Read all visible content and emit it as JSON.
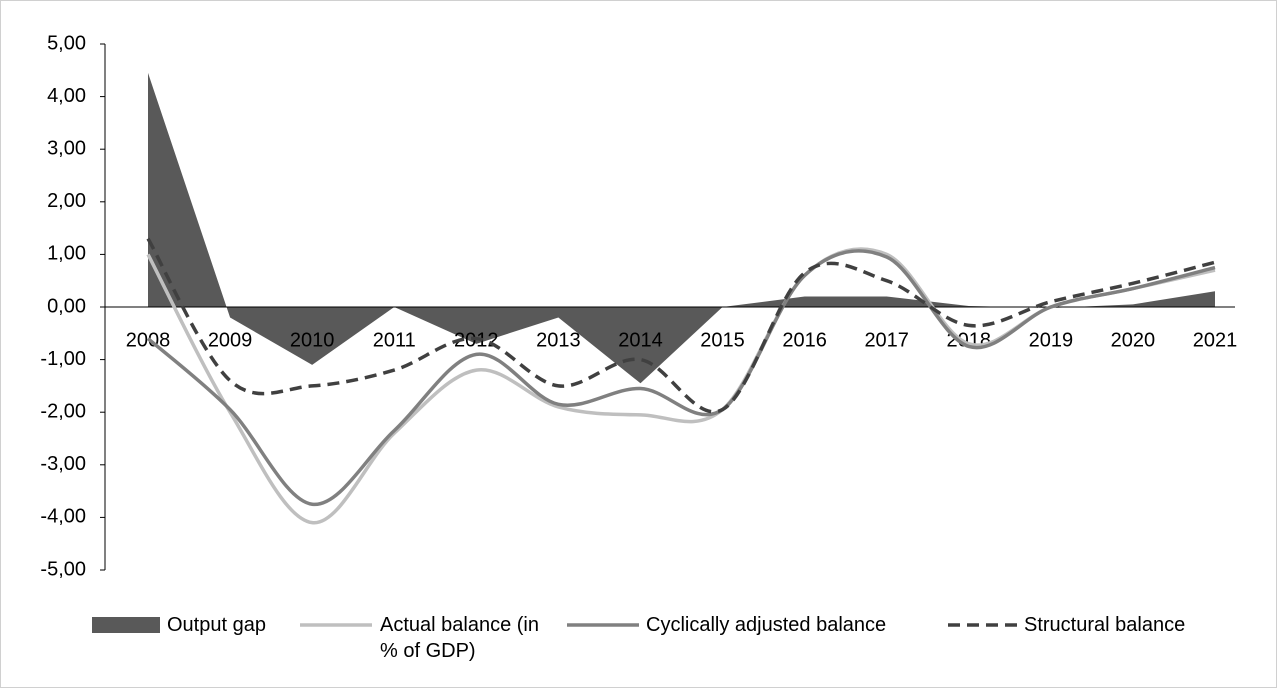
{
  "chart_data": {
    "type": "line",
    "categories": [
      "2008",
      "2009",
      "2010",
      "2011",
      "2012",
      "2013",
      "2014",
      "2015",
      "2016",
      "2017",
      "2018",
      "2019",
      "2020",
      "2021"
    ],
    "series": [
      {
        "name": "Output gap",
        "type": "area",
        "color": "#595959",
        "values": [
          4.45,
          -0.2,
          -1.1,
          0,
          -0.7,
          -0.2,
          -1.45,
          0,
          0.2,
          0.2,
          0.02,
          -0.02,
          0.05,
          0.3
        ]
      },
      {
        "name": "Actual balance (in % of GDP)",
        "type": "line",
        "color": "#bfbfbf",
        "values": [
          1.0,
          -2.0,
          -4.1,
          -2.4,
          -1.2,
          -1.9,
          -2.05,
          -1.95,
          0.6,
          1.0,
          -0.7,
          0.0,
          0.35,
          0.7
        ]
      },
      {
        "name": "Cyclically adjusted balance",
        "type": "line",
        "color": "#808080",
        "values": [
          -0.6,
          -1.95,
          -3.75,
          -2.35,
          -0.9,
          -1.85,
          -1.55,
          -1.95,
          0.6,
          0.95,
          -0.75,
          0.0,
          0.35,
          0.75
        ]
      },
      {
        "name": "Structural balance",
        "type": "line",
        "color": "#404040",
        "dashed": true,
        "values": [
          1.3,
          -1.4,
          -1.5,
          -1.2,
          -0.6,
          -1.5,
          -1.0,
          -1.95,
          0.65,
          0.5,
          -0.35,
          0.1,
          0.45,
          0.85
        ]
      }
    ],
    "ylim": [
      -5,
      5
    ],
    "yticks": [
      {
        "value": 5,
        "label": "5,00"
      },
      {
        "value": 4,
        "label": "4,00"
      },
      {
        "value": 3,
        "label": "3,00"
      },
      {
        "value": 2,
        "label": "2,00"
      },
      {
        "value": 1,
        "label": "1,00"
      },
      {
        "value": 0,
        "label": "0,00"
      },
      {
        "value": -1,
        "label": "-1,00"
      },
      {
        "value": -2,
        "label": "-2,00"
      },
      {
        "value": -3,
        "label": "-3,00"
      },
      {
        "value": -4,
        "label": "-4,00"
      },
      {
        "value": -5,
        "label": "-5,00"
      }
    ],
    "grid": false,
    "legend": "bottom"
  }
}
